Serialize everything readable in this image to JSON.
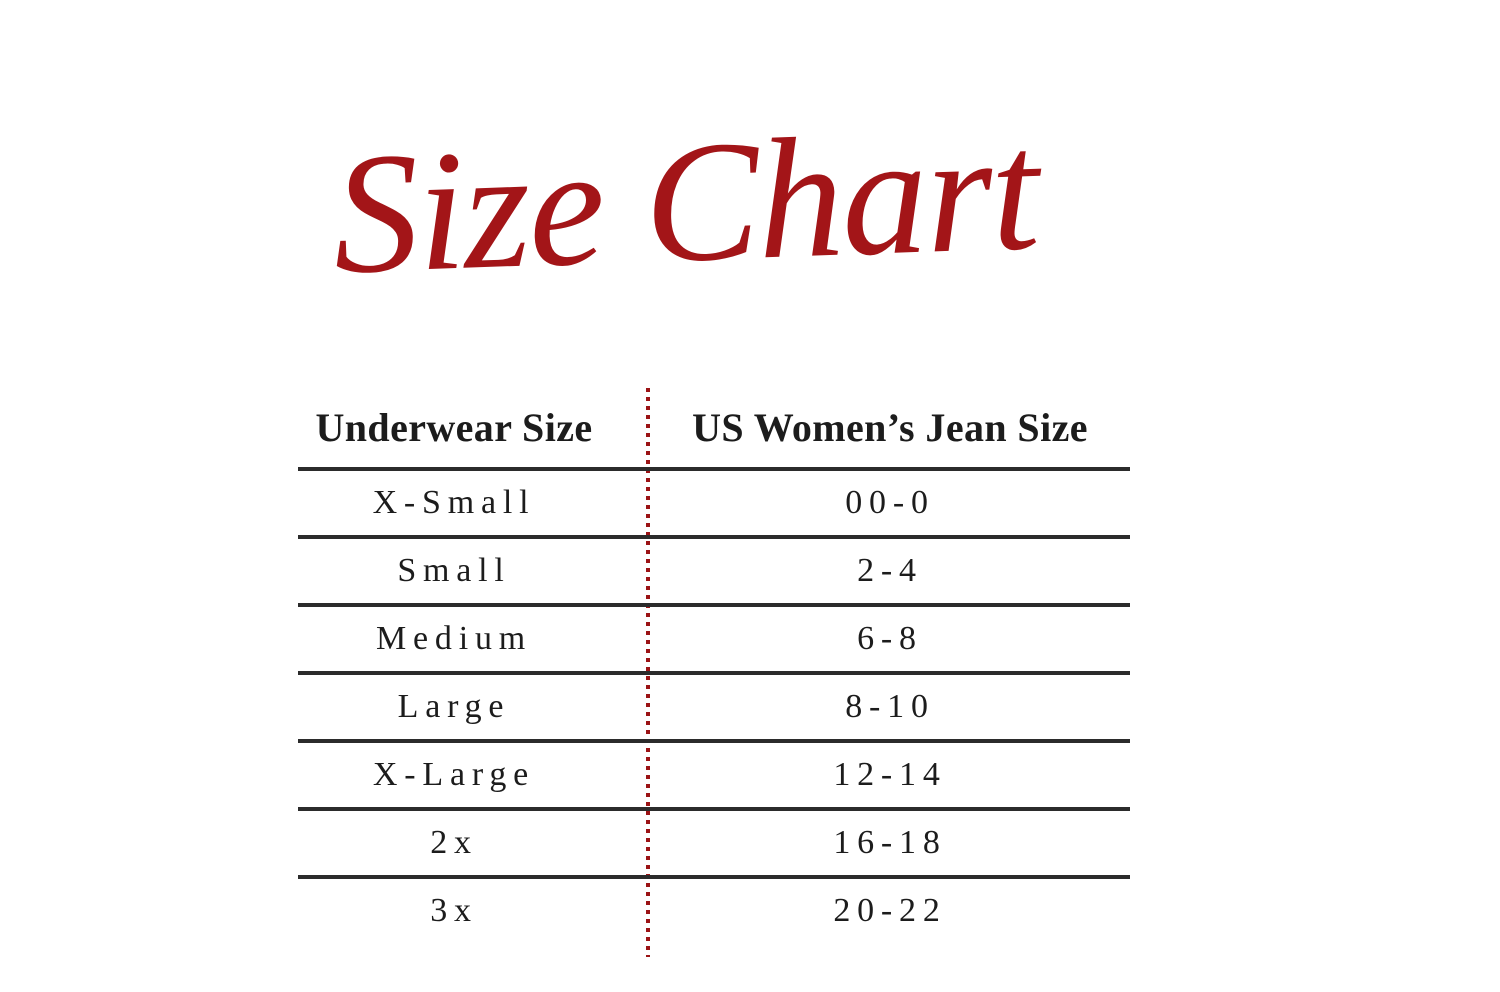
{
  "page_title": "Size Chart",
  "colors": {
    "accent_red": "#A31518",
    "dotted_divider_red": "#9B1315",
    "rule_dark": "#2B2B2B",
    "text_dark": "#1C1C1C",
    "background": "#FFFFFF"
  },
  "chart_data": {
    "type": "table",
    "title": "Size Chart",
    "columns": [
      "Underwear Size",
      "US Women’s Jean Size"
    ],
    "rows": [
      [
        "X-Small",
        "00-0"
      ],
      [
        "Small",
        "2-4"
      ],
      [
        "Medium",
        "6-8"
      ],
      [
        "Large",
        "8-10"
      ],
      [
        "X-Large",
        "12-14"
      ],
      [
        "2x",
        "16-18"
      ],
      [
        "3x",
        "20-22"
      ]
    ],
    "layout": {
      "title_style": "red handwritten script, centered above table",
      "column_divider": "red dotted vertical line",
      "row_rules": "thick dark horizontal lines between rows, none below last row",
      "grid": "horizontal rules only"
    }
  }
}
